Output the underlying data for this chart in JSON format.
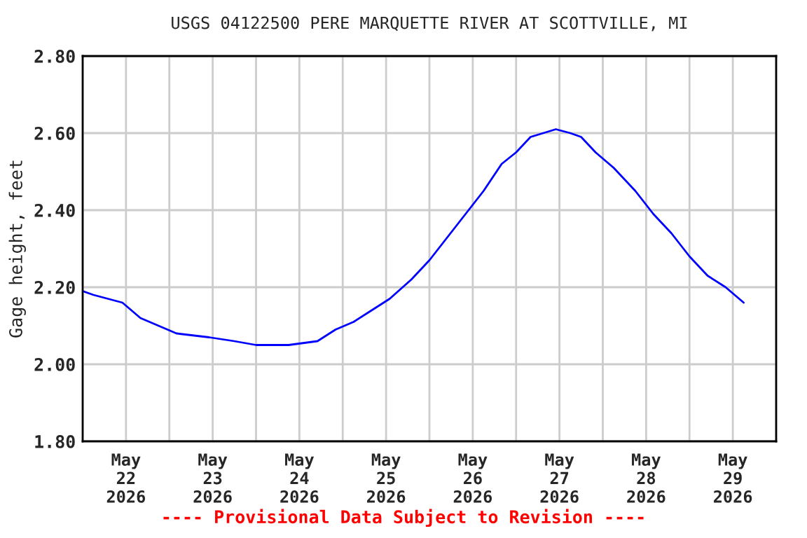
{
  "chart_data": {
    "type": "line",
    "title": "USGS 04122500 PERE MARQUETTE RIVER AT SCOTTVILLE, MI",
    "ylabel": "Gage height, feet",
    "x": [
      "2026-05-22T00:00",
      "2026-05-22T03:00",
      "2026-05-22T11:00",
      "2026-05-22T16:00",
      "2026-05-22T21:00",
      "2026-05-23T02:00",
      "2026-05-23T11:00",
      "2026-05-23T18:00",
      "2026-05-24T00:00",
      "2026-05-24T09:00",
      "2026-05-24T17:00",
      "2026-05-24T22:00",
      "2026-05-25T03:00",
      "2026-05-25T08:00",
      "2026-05-25T13:00",
      "2026-05-25T19:00",
      "2026-05-26T00:00",
      "2026-05-26T05:00",
      "2026-05-26T10:00",
      "2026-05-26T15:00",
      "2026-05-26T20:00",
      "2026-05-27T00:00",
      "2026-05-27T04:00",
      "2026-05-27T11:00",
      "2026-05-27T15:00",
      "2026-05-27T18:00",
      "2026-05-27T22:00",
      "2026-05-28T03:00",
      "2026-05-28T09:00",
      "2026-05-28T14:00",
      "2026-05-28T19:00",
      "2026-05-29T00:00",
      "2026-05-29T05:00",
      "2026-05-29T10:00",
      "2026-05-29T15:00"
    ],
    "series": [
      {
        "color": "#0000ff",
        "values": [
          2.19,
          2.18,
          2.16,
          2.12,
          2.1,
          2.08,
          2.07,
          2.06,
          2.05,
          2.05,
          2.06,
          2.09,
          2.11,
          2.14,
          2.17,
          2.22,
          2.27,
          2.33,
          2.39,
          2.45,
          2.52,
          2.55,
          2.59,
          2.61,
          2.6,
          2.59,
          2.55,
          2.51,
          2.45,
          2.39,
          2.34,
          2.28,
          2.23,
          2.2,
          2.16
        ]
      }
    ],
    "xlim": [
      "2026-05-22T00:00",
      "2026-05-30T00:00"
    ],
    "xticks": [
      {
        "value": "2026-05-22T00:00",
        "label": null
      },
      {
        "value": "2026-05-22T12:00",
        "label": "May\n22\n2026"
      },
      {
        "value": "2026-05-23T00:00",
        "label": null
      },
      {
        "value": "2026-05-23T12:00",
        "label": "May\n23\n2026"
      },
      {
        "value": "2026-05-24T00:00",
        "label": null
      },
      {
        "value": "2026-05-24T12:00",
        "label": "May\n24\n2026"
      },
      {
        "value": "2026-05-25T00:00",
        "label": null
      },
      {
        "value": "2026-05-25T12:00",
        "label": "May\n25\n2026"
      },
      {
        "value": "2026-05-26T00:00",
        "label": null
      },
      {
        "value": "2026-05-26T12:00",
        "label": "May\n26\n2026"
      },
      {
        "value": "2026-05-27T00:00",
        "label": null
      },
      {
        "value": "2026-05-27T12:00",
        "label": "May\n27\n2026"
      },
      {
        "value": "2026-05-28T00:00",
        "label": null
      },
      {
        "value": "2026-05-28T12:00",
        "label": "May\n28\n2026"
      },
      {
        "value": "2026-05-29T00:00",
        "label": null
      },
      {
        "value": "2026-05-29T12:00",
        "label": "May\n29\n2026"
      },
      {
        "value": "2026-05-30T00:00",
        "label": null
      }
    ],
    "ylim": [
      1.8,
      2.8
    ],
    "yticks": [
      {
        "value": 1.8,
        "label": "1.80"
      },
      {
        "value": 2.0,
        "label": "2.00"
      },
      {
        "value": 2.2,
        "label": "2.20"
      },
      {
        "value": 2.4,
        "label": "2.40"
      },
      {
        "value": 2.6,
        "label": "2.60"
      },
      {
        "value": 2.8,
        "label": "2.80"
      }
    ],
    "grid": true,
    "marker": "none",
    "line_style": "solid",
    "annotations": [
      "---- Provisional Data Subject to Revision ----"
    ]
  }
}
